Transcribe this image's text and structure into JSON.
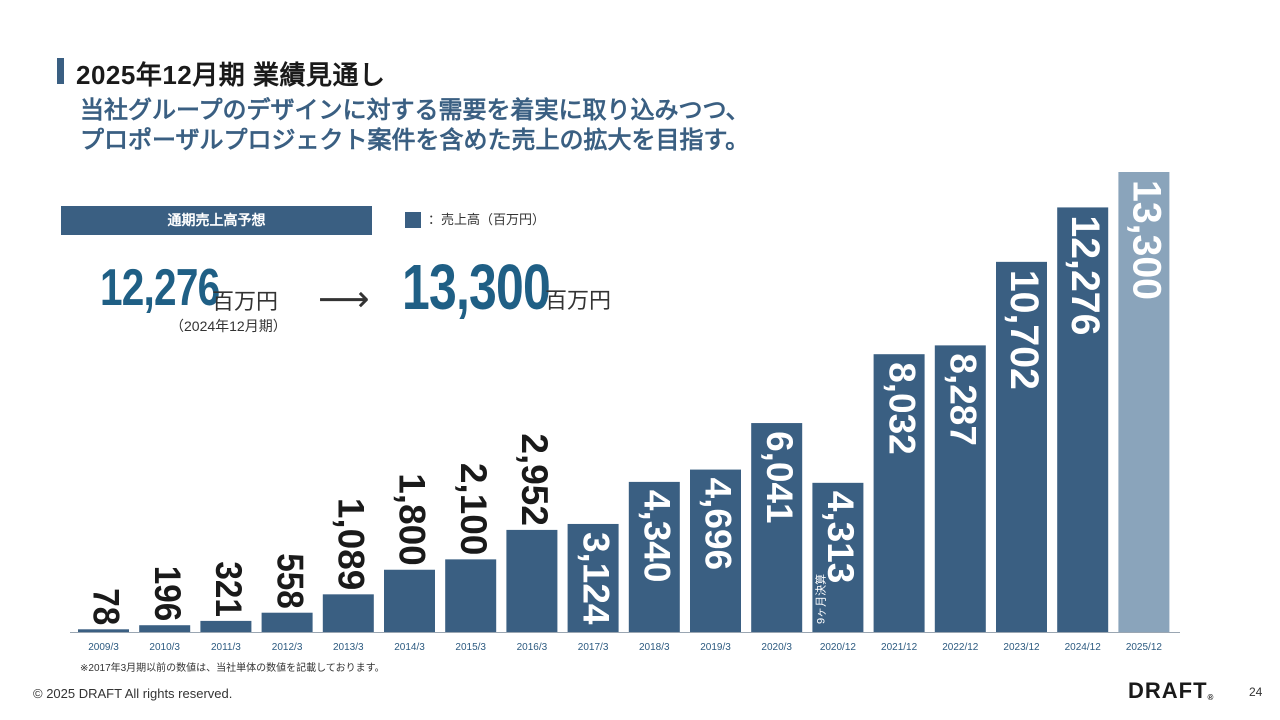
{
  "header": {
    "title": "2025年12月期 業績見通し",
    "subtitle_line1": "当社グループのデザインに対する需要を着実に取り込みつつ、",
    "subtitle_line2": "プロポーザルプロジェクト案件を含めた売上の拡大を目指す。"
  },
  "forecast": {
    "label": "通期売上高予想",
    "prev_value": "12,276",
    "prev_unit": "百万円",
    "prev_note": "（2024年12月期）",
    "arrow": "⟶",
    "next_value": "13,300",
    "next_unit": "百万円"
  },
  "legend": {
    "text": "：売上高（百万円）",
    "color": "#3a5f82"
  },
  "colors": {
    "bar": "#3a5f82",
    "bar_forecast": "#8aa4bb",
    "accent": "#1f5f85"
  },
  "chart_data": {
    "type": "bar",
    "categories": [
      "2009/3",
      "2010/3",
      "2011/3",
      "2012/3",
      "2013/3",
      "2014/3",
      "2015/3",
      "2016/3",
      "2017/3",
      "2018/3",
      "2019/3",
      "2020/3",
      "2020/12",
      "2021/12",
      "2022/12",
      "2023/12",
      "2024/12",
      "2025/12"
    ],
    "values": [
      78,
      196,
      321,
      558,
      1089,
      1800,
      2100,
      2952,
      3124,
      4340,
      4696,
      6041,
      4313,
      8032,
      8287,
      10702,
      12276,
      13300
    ],
    "labels": [
      "78",
      "196",
      "321",
      "558",
      "1,089",
      "1,800",
      "2,100",
      "2,952",
      "3,124",
      "4,340",
      "4,696",
      "6,041",
      "4,313",
      "8,032",
      "8,287",
      "10,702",
      "12,276",
      "13,300"
    ],
    "forecast_index": 17,
    "special_note_index": 12,
    "special_note": "9ヶ月決算",
    "ylim": [
      0,
      13300
    ],
    "grid": false
  },
  "footer": {
    "footnote": "※2017年3月期以前の数値は、当社単体の数値を記載しております。",
    "copyright": "© 2025 DRAFT All rights reserved.",
    "brand": "DRAFT",
    "brand_mark": "®",
    "page": "24"
  }
}
